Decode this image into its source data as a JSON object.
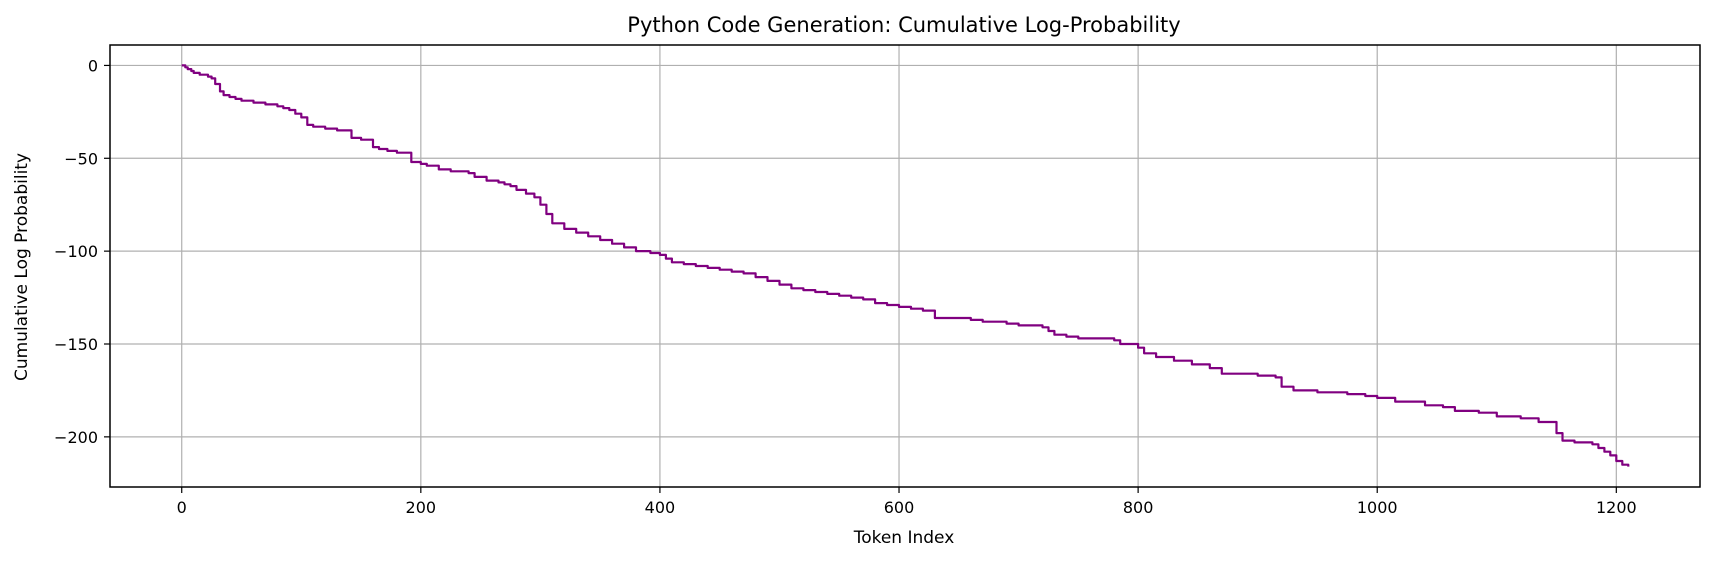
{
  "chart_data": {
    "type": "line",
    "title": "Python Code Generation: Cumulative Log-Probability",
    "xlabel": "Token Index",
    "ylabel": "Cumulative Log Probability",
    "xlim": [
      -60,
      1270
    ],
    "ylim": [
      -227,
      11
    ],
    "xticks": [
      0,
      200,
      400,
      600,
      800,
      1000,
      1200
    ],
    "xtick_labels": [
      "0",
      "200",
      "400",
      "600",
      "800",
      "1000",
      "1200"
    ],
    "yticks": [
      0,
      -50,
      -100,
      -150,
      -200
    ],
    "ytick_labels": [
      "0",
      "−50",
      "−100",
      "−150",
      "−200"
    ],
    "grid": true,
    "series": [
      {
        "color": "#800080",
        "step": true,
        "x": [
          0,
          3,
          5,
          8,
          10,
          15,
          22,
          25,
          28,
          32,
          35,
          40,
          45,
          50,
          60,
          70,
          80,
          85,
          90,
          95,
          100,
          105,
          110,
          120,
          130,
          142,
          150,
          160,
          165,
          172,
          180,
          192,
          200,
          205,
          215,
          225,
          240,
          245,
          255,
          265,
          270,
          275,
          280,
          288,
          295,
          300,
          305,
          310,
          320,
          330,
          340,
          350,
          360,
          370,
          380,
          392,
          400,
          405,
          410,
          420,
          430,
          440,
          450,
          460,
          470,
          480,
          490,
          500,
          510,
          520,
          530,
          540,
          550,
          560,
          570,
          580,
          590,
          600,
          610,
          620,
          630,
          660,
          670,
          690,
          700,
          720,
          725,
          730,
          740,
          750,
          780,
          785,
          800,
          805,
          815,
          830,
          845,
          860,
          870,
          900,
          915,
          920,
          930,
          950,
          975,
          990,
          1000,
          1015,
          1040,
          1055,
          1065,
          1085,
          1100,
          1120,
          1135,
          1150,
          1155,
          1165,
          1180,
          1185,
          1190,
          1195,
          1200,
          1205,
          1210
        ],
        "y": [
          0,
          -1,
          -2,
          -3,
          -4,
          -5,
          -6,
          -7,
          -10,
          -14,
          -16,
          -17,
          -18,
          -19,
          -20,
          -21,
          -22,
          -23,
          -24,
          -26,
          -28,
          -32,
          -33,
          -34,
          -35,
          -39,
          -40,
          -44,
          -45,
          -46,
          -47,
          -52,
          -53,
          -54,
          -56,
          -57,
          -58,
          -60,
          -62,
          -63,
          -64,
          -65,
          -67,
          -69,
          -71,
          -75,
          -80,
          -85,
          -88,
          -90,
          -92,
          -94,
          -96,
          -98,
          -100,
          -101,
          -102,
          -104,
          -106,
          -107,
          -108,
          -109,
          -110,
          -111,
          -112,
          -114,
          -116,
          -118,
          -120,
          -121,
          -122,
          -123,
          -124,
          -125,
          -126,
          -128,
          -129,
          -130,
          -131,
          -132,
          -136,
          -137,
          -138,
          -139,
          -140,
          -141,
          -143,
          -145,
          -146,
          -147,
          -148,
          -150,
          -152,
          -155,
          -157,
          -159,
          -161,
          -163,
          -166,
          -167,
          -168,
          -173,
          -175,
          -176,
          -177,
          -178,
          -179,
          -181,
          -183,
          -184,
          -186,
          -187,
          -189,
          -190,
          -192,
          -198,
          -202,
          -203,
          -204,
          -206,
          -208,
          -210,
          -213,
          -215,
          -216
        ]
      }
    ]
  }
}
